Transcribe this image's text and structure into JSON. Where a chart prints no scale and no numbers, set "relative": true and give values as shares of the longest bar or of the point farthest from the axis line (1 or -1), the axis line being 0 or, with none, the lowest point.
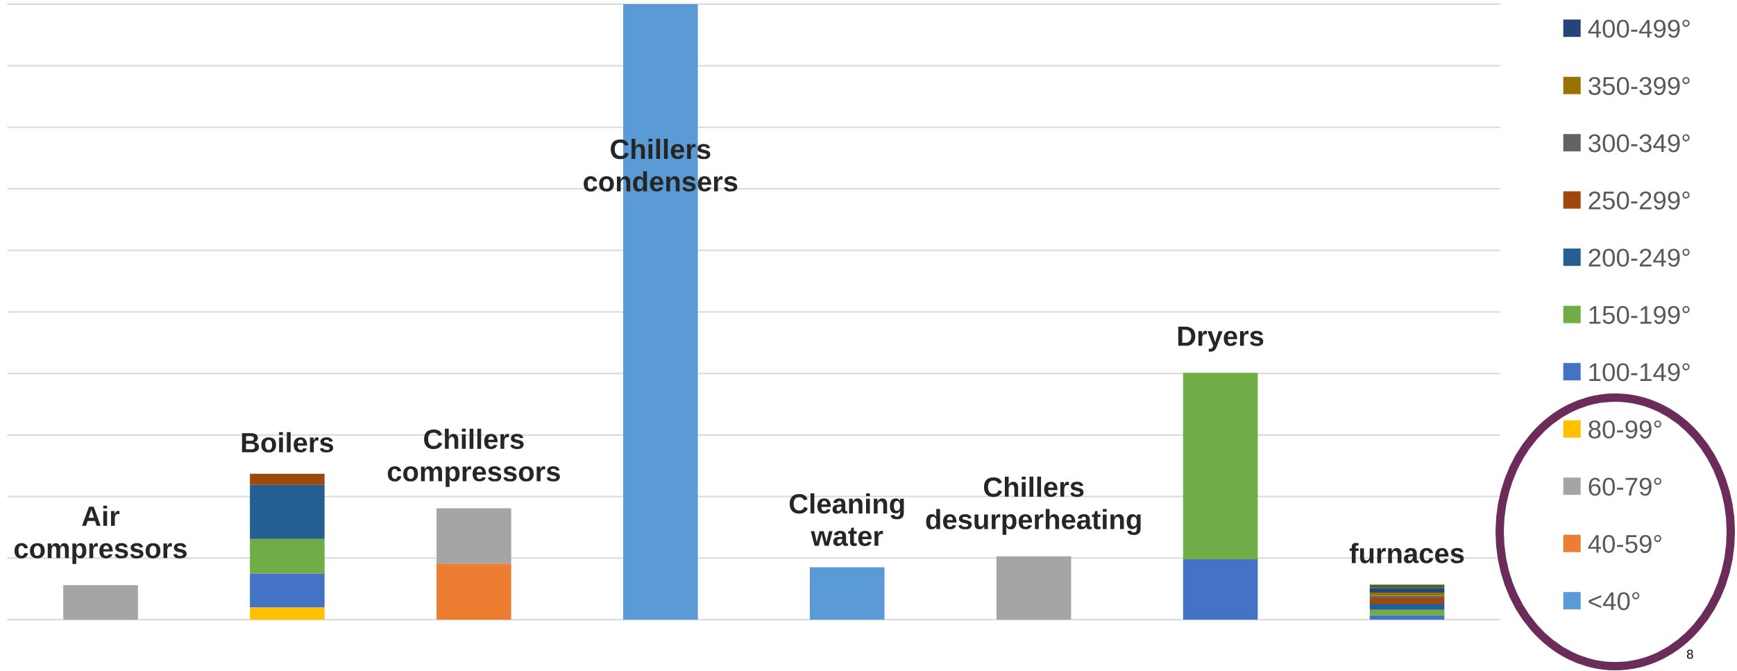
{
  "chart_data": {
    "type": "bar",
    "stacked": true,
    "relative": true,
    "categories": [
      "Air compressors",
      "Boilers",
      "Chillers compressors",
      "Chillers condensers",
      "Cleaning water",
      "Chillers desurperheating",
      "Dryers",
      "furnaces"
    ],
    "series": [
      {
        "name": "<40°",
        "color": "#5b9bd5",
        "values": [
          null,
          null,
          null,
          1,
          0.085,
          null,
          null,
          null
        ]
      },
      {
        "name": "40-59°",
        "color": "#ed7d31",
        "values": [
          null,
          null,
          0.091,
          null,
          null,
          null,
          null,
          null
        ]
      },
      {
        "name": "60-79°",
        "color": "#a5a5a5",
        "values": [
          0.056,
          null,
          0.09,
          null,
          null,
          0.103,
          null,
          null
        ]
      },
      {
        "name": "80-99°",
        "color": "#ffc000",
        "values": [
          null,
          0.02,
          null,
          null,
          null,
          null,
          null,
          null
        ]
      },
      {
        "name": "100-149°",
        "color": "#4472c4",
        "values": [
          null,
          0.055,
          null,
          null,
          null,
          null,
          0.098,
          0.007
        ]
      },
      {
        "name": "150-199°",
        "color": "#70ad47",
        "values": [
          null,
          0.056,
          null,
          null,
          null,
          null,
          0.303,
          0.009
        ]
      },
      {
        "name": "200-249°",
        "color": "#255e91",
        "values": [
          null,
          0.088,
          null,
          null,
          null,
          null,
          null,
          0.01
        ]
      },
      {
        "name": "250-299°",
        "color": "#9e480e",
        "values": [
          null,
          0.018,
          null,
          null,
          null,
          null,
          null,
          0.009
        ]
      },
      {
        "name": "300-349°",
        "color": "#636363",
        "values": [
          null,
          null,
          null,
          null,
          null,
          null,
          null,
          0.004
        ]
      },
      {
        "name": "350-399°",
        "color": "#997300",
        "values": [
          null,
          null,
          null,
          null,
          null,
          null,
          null,
          0.005
        ]
      },
      {
        "name": "400-499°",
        "color": "#264478",
        "values": [
          null,
          null,
          null,
          null,
          null,
          null,
          null,
          0.007
        ]
      },
      {
        "color": "#43682b",
        "values": [
          null,
          null,
          null,
          null,
          null,
          null,
          null,
          0.006
        ]
      }
    ],
    "grid": "y",
    "legend": "right",
    "annotations": [
      "8"
    ]
  }
}
